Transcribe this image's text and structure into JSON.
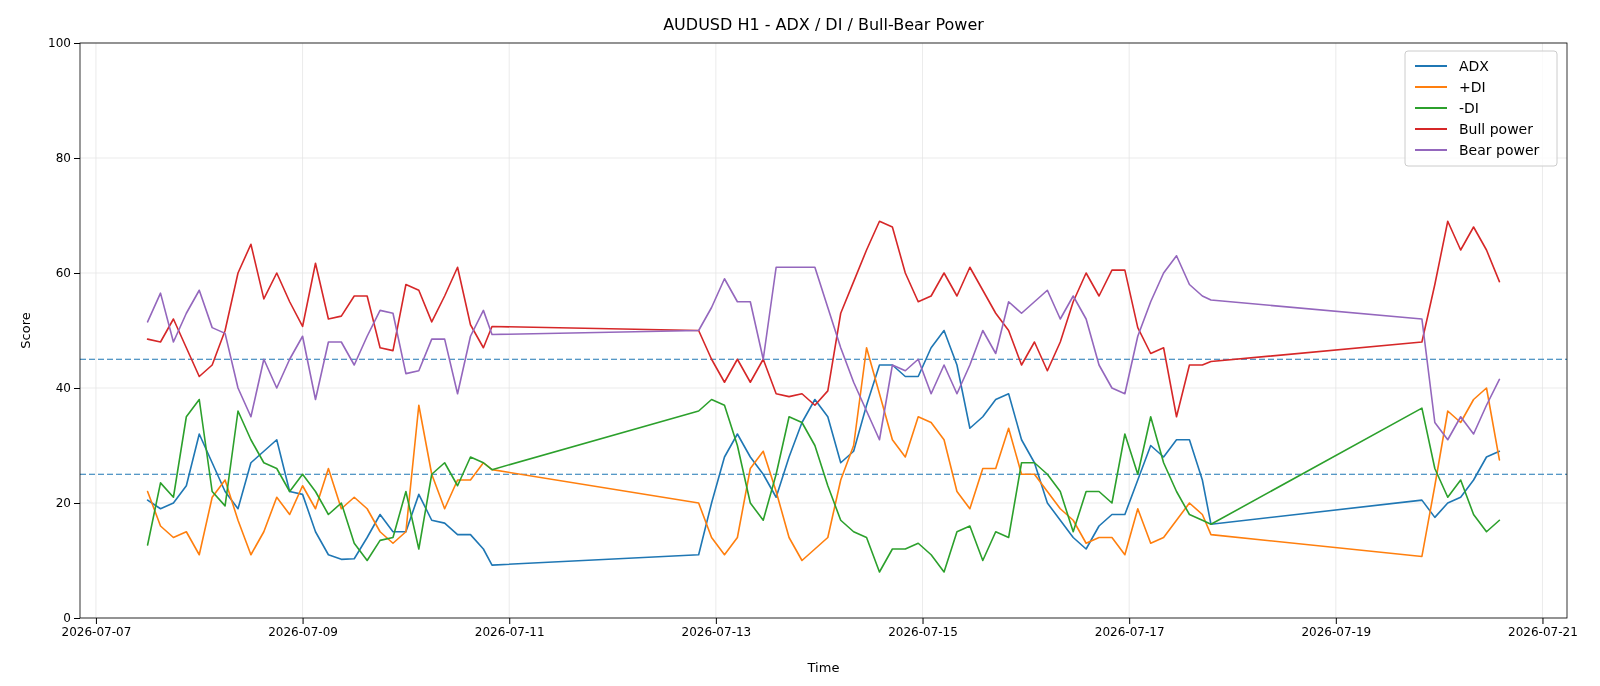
{
  "chart_data": {
    "type": "line",
    "title": "AUDUSD H1 - ADX / DI / Bull-Bear Power",
    "xlabel": "Time",
    "ylabel": "Score",
    "x": [
      "2026-07-07T12:00",
      "2026-07-07T15:00",
      "2026-07-07T18:00",
      "2026-07-07T21:00",
      "2026-07-08T00:00",
      "2026-07-08T03:00",
      "2026-07-08T06:00",
      "2026-07-08T09:00",
      "2026-07-08T12:00",
      "2026-07-08T15:00",
      "2026-07-08T18:00",
      "2026-07-08T21:00",
      "2026-07-09T00:00",
      "2026-07-09T03:00",
      "2026-07-09T06:00",
      "2026-07-09T09:00",
      "2026-07-09T12:00",
      "2026-07-09T15:00",
      "2026-07-09T18:00",
      "2026-07-09T21:00",
      "2026-07-10T00:00",
      "2026-07-10T03:00",
      "2026-07-10T06:00",
      "2026-07-10T09:00",
      "2026-07-10T12:00",
      "2026-07-10T15:00",
      "2026-07-10T18:00",
      "2026-07-10T20:00",
      "2026-07-12T20:00",
      "2026-07-12T23:00",
      "2026-07-13T02:00",
      "2026-07-13T05:00",
      "2026-07-13T08:00",
      "2026-07-13T11:00",
      "2026-07-13T14:00",
      "2026-07-13T17:00",
      "2026-07-13T20:00",
      "2026-07-13T23:00",
      "2026-07-14T02:00",
      "2026-07-14T05:00",
      "2026-07-14T08:00",
      "2026-07-14T11:00",
      "2026-07-14T14:00",
      "2026-07-14T17:00",
      "2026-07-14T20:00",
      "2026-07-14T23:00",
      "2026-07-15T02:00",
      "2026-07-15T05:00",
      "2026-07-15T08:00",
      "2026-07-15T11:00",
      "2026-07-15T14:00",
      "2026-07-15T17:00",
      "2026-07-15T20:00",
      "2026-07-15T23:00",
      "2026-07-16T02:00",
      "2026-07-16T05:00",
      "2026-07-16T08:00",
      "2026-07-16T11:00",
      "2026-07-16T14:00",
      "2026-07-16T17:00",
      "2026-07-16T20:00",
      "2026-07-16T23:00",
      "2026-07-17T02:00",
      "2026-07-17T05:00",
      "2026-07-17T08:00",
      "2026-07-17T11:00",
      "2026-07-17T14:00",
      "2026-07-17T17:00",
      "2026-07-17T19:00",
      "2026-07-19T20:00",
      "2026-07-19T23:00",
      "2026-07-20T02:00",
      "2026-07-20T05:00",
      "2026-07-20T08:00",
      "2026-07-20T11:00",
      "2026-07-20T14:00"
    ],
    "series": [
      {
        "name": "ADX",
        "color": "#1f77b4",
        "values": [
          20.5,
          19,
          20,
          23,
          32,
          27,
          22,
          19,
          27,
          29,
          31,
          22,
          21.5,
          15,
          11,
          10.2,
          10.3,
          14,
          18,
          15,
          15,
          21.5,
          17,
          16.5,
          14.5,
          14.5,
          12,
          9.2,
          11,
          20,
          28,
          32,
          28,
          25,
          21,
          28,
          34,
          38,
          35,
          27,
          29,
          37,
          44,
          44,
          42,
          42,
          47,
          50,
          44,
          33,
          35,
          38,
          39,
          31,
          27,
          20,
          17,
          14,
          12,
          16,
          18,
          18,
          24,
          30,
          28,
          31,
          31,
          24,
          16.3,
          20.5,
          17.5,
          20,
          21,
          24,
          28,
          29
        ]
      },
      {
        "name": "+DI",
        "color": "#ff7f0e",
        "values": [
          22,
          16,
          14,
          15,
          11,
          21,
          24,
          17,
          11,
          15,
          21,
          18,
          23,
          19,
          26,
          19,
          21,
          19,
          15,
          13,
          15,
          37,
          25,
          19,
          24,
          24,
          27,
          25.8,
          20,
          14,
          11,
          14,
          26,
          29,
          22,
          14,
          10,
          12,
          14,
          24,
          30,
          47,
          39,
          31,
          28,
          35,
          34,
          31,
          22,
          19,
          26,
          26,
          33,
          25,
          25,
          22,
          19,
          17,
          13,
          14,
          14,
          11,
          19,
          13,
          14,
          17,
          20,
          18,
          14.5,
          10.7,
          23,
          36,
          34,
          38,
          40,
          27.5
        ]
      },
      {
        "name": "-DI",
        "color": "#2ca02c",
        "values": [
          12.7,
          23.5,
          21,
          35,
          38,
          22,
          19.5,
          36,
          31,
          27,
          26,
          22,
          25,
          22,
          18,
          20,
          13,
          10,
          13.5,
          14,
          22,
          12,
          25,
          27,
          23,
          28,
          27,
          25.8,
          36,
          38,
          37,
          30,
          20,
          17,
          25,
          35,
          34,
          30,
          23,
          17,
          15,
          14,
          8,
          12,
          12,
          13,
          11,
          8,
          15,
          16,
          10,
          15,
          14,
          27,
          27,
          25,
          22,
          15,
          22,
          22,
          20,
          32,
          25,
          35,
          27,
          22,
          18,
          17,
          16.3,
          36.5,
          26,
          21,
          24,
          18,
          15,
          17
        ]
      },
      {
        "name": "Bull power",
        "color": "#d62728",
        "values": [
          48.5,
          48,
          52,
          47,
          42,
          44,
          50,
          60,
          65,
          55.5,
          60,
          55,
          50.7,
          61.7,
          52,
          52.5,
          56,
          56,
          47,
          46.5,
          58,
          57,
          51.5,
          56,
          61,
          51,
          47,
          50.7,
          50,
          45,
          41,
          45,
          41,
          45,
          39,
          38.5,
          39,
          37,
          39.5,
          53,
          58.5,
          64,
          69,
          68,
          60,
          55,
          56,
          60,
          56,
          61,
          57,
          53,
          50,
          44,
          48,
          43,
          48,
          55,
          60,
          56,
          60.5,
          60.5,
          50.5,
          46,
          47,
          35,
          44,
          44,
          44.6,
          48,
          58,
          69,
          64,
          68,
          64,
          58.5
        ]
      },
      {
        "name": "Bear power",
        "color": "#9467bd",
        "values": [
          51.5,
          56.5,
          48,
          53,
          57,
          50.5,
          49.5,
          40,
          35,
          45,
          40,
          45,
          49,
          38,
          48,
          48,
          44,
          49,
          53.5,
          53,
          42.5,
          43,
          48.5,
          48.5,
          39,
          49,
          53.5,
          49.3,
          50,
          54,
          59,
          55,
          55,
          45,
          61,
          61,
          61,
          61,
          54,
          47,
          41,
          36,
          31,
          44,
          43,
          45,
          39,
          44,
          39,
          44,
          50,
          46,
          55,
          53,
          55,
          57,
          52,
          56,
          52,
          44,
          40,
          39,
          49,
          55,
          60,
          63,
          58,
          56,
          55.3,
          52,
          34,
          31,
          35,
          32,
          37,
          41.5
        ]
      }
    ],
    "xlim": [
      "2026-07-06T20:18",
      "2026-07-21T05:42"
    ],
    "xticks": [
      {
        "value": "2026-07-07",
        "label": "2026-07-07"
      },
      {
        "value": "2026-07-09",
        "label": "2026-07-09"
      },
      {
        "value": "2026-07-11",
        "label": "2026-07-11"
      },
      {
        "value": "2026-07-13",
        "label": "2026-07-13"
      },
      {
        "value": "2026-07-15",
        "label": "2026-07-15"
      },
      {
        "value": "2026-07-17",
        "label": "2026-07-17"
      },
      {
        "value": "2026-07-19",
        "label": "2026-07-19"
      },
      {
        "value": "2026-07-21",
        "label": "2026-07-21"
      }
    ],
    "ylim": [
      0,
      100
    ],
    "yticks": [
      0,
      20,
      40,
      60,
      80,
      100
    ],
    "ref_lines": [
      {
        "axis": "y",
        "value": 45,
        "color": "#1f77b4",
        "line_style": "dashed"
      },
      {
        "axis": "y",
        "value": 25,
        "color": "#1f77b4",
        "line_style": "dashed"
      }
    ],
    "grid": true,
    "legend": "top right",
    "marker": "none",
    "line_style": "solid"
  }
}
